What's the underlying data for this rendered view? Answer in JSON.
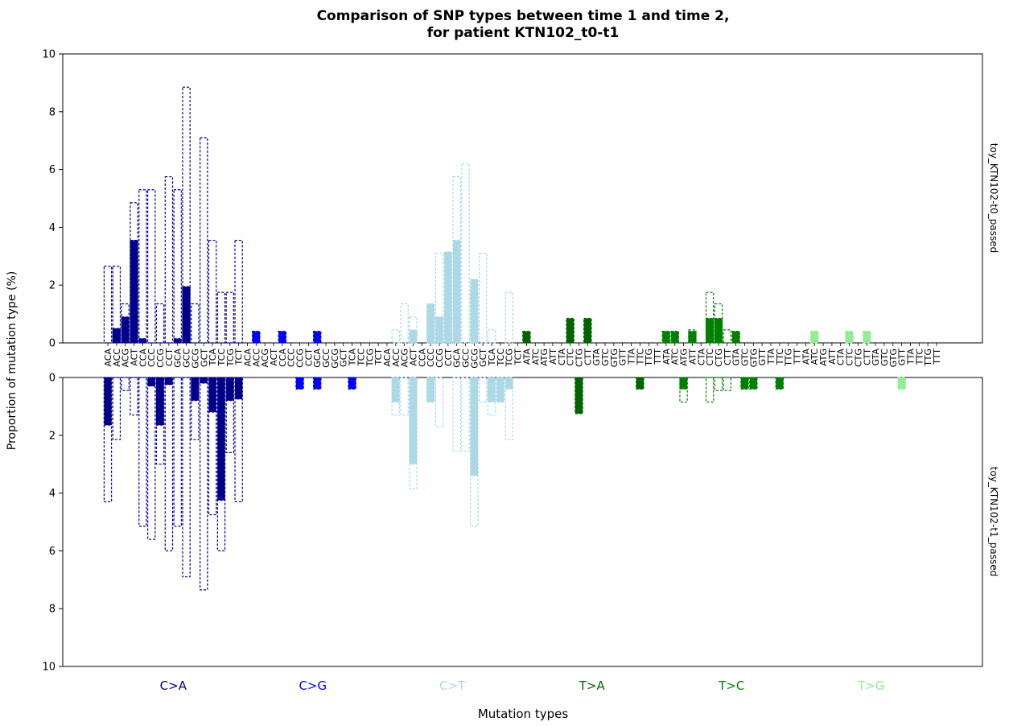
{
  "chart_data": {
    "type": "bar",
    "title_line1": "Comparison of SNP types between time 1 and time 2,",
    "title_line2": "for patient KTN102_t0-t1",
    "xlabel": "Mutation types",
    "ylabel": "Proportion of mutation type (%)",
    "ylim": [
      0,
      10
    ],
    "yticks": [
      "0",
      "2",
      "4",
      "6",
      "8",
      "10"
    ],
    "panel_labels": [
      "toy_KTN102-t0_passed",
      "toy_KTN102-t1_passed"
    ],
    "groups": [
      {
        "name": "C>A",
        "color": "#00008B",
        "contexts": [
          "ACA",
          "ACC",
          "ACG",
          "ACT",
          "CCA",
          "CCC",
          "CCG",
          "CCT",
          "GCA",
          "GCC",
          "GCG",
          "GCT",
          "TCA",
          "TCC",
          "TCG",
          "TCT"
        ]
      },
      {
        "name": "C>G",
        "color": "#0000FF",
        "contexts": [
          "ACA",
          "ACC",
          "ACG",
          "ACT",
          "CCA",
          "CCC",
          "CCG",
          "CCT",
          "GCA",
          "GCC",
          "GCG",
          "GCT",
          "TCA",
          "TCC",
          "TCG",
          "TCT"
        ]
      },
      {
        "name": "C>T",
        "color": "#ADD8E6",
        "contexts": [
          "ACA",
          "ACC",
          "ACG",
          "ACT",
          "CCA",
          "CCC",
          "CCG",
          "CCT",
          "GCA",
          "GCC",
          "GCG",
          "GCT",
          "TCA",
          "TCC",
          "TCG",
          "TCT"
        ]
      },
      {
        "name": "T>A",
        "color": "#006400",
        "contexts": [
          "ATA",
          "ATC",
          "ATG",
          "ATT",
          "CTA",
          "CTC",
          "CTG",
          "CTT",
          "GTA",
          "GTC",
          "GTG",
          "GTT",
          "TTA",
          "TTC",
          "TTG",
          "TTT"
        ]
      },
      {
        "name": "T>C",
        "color": "#008000",
        "contexts": [
          "ATA",
          "ATC",
          "ATG",
          "ATT",
          "CTA",
          "CTC",
          "CTG",
          "CTT",
          "GTA",
          "GTC",
          "GTG",
          "GTT",
          "TTA",
          "TTC",
          "TTG",
          "TTT"
        ]
      },
      {
        "name": "T>G",
        "color": "#90EE90",
        "contexts": [
          "ATA",
          "ATC",
          "ATG",
          "ATT",
          "CTA",
          "CTC",
          "CTG",
          "CTT",
          "GTA",
          "GTC",
          "GTG",
          "GTT",
          "TTA",
          "TTC",
          "TTG",
          "TTT"
        ]
      }
    ],
    "series": [
      {
        "name": "toy_KTN102-t0_passed",
        "values": [
          0,
          0.5,
          0.9,
          3.55,
          0.15,
          0,
          0,
          0,
          0.15,
          1.95,
          0,
          0,
          0,
          0,
          0,
          0,
          0,
          0.4,
          0,
          0,
          0.4,
          0,
          0,
          0,
          0.4,
          0,
          0,
          0,
          0,
          0,
          0,
          0,
          0,
          0,
          0,
          0.45,
          0,
          1.35,
          0.9,
          3.15,
          3.55,
          0,
          2.2,
          0,
          0,
          0,
          0,
          0,
          0.4,
          0,
          0,
          0,
          0,
          0.85,
          0,
          0.85,
          0,
          0,
          0,
          0,
          0,
          0,
          0,
          0,
          0.4,
          0.4,
          0,
          0.4,
          0,
          0.85,
          0.85,
          0,
          0.4,
          0,
          0,
          0,
          0,
          0,
          0,
          0,
          0,
          0.4,
          0,
          0,
          0,
          0.4,
          0,
          0.4,
          0,
          0,
          0,
          0,
          0,
          0,
          0,
          0
        ],
        "ci_high": [
          2.65,
          2.65,
          1.35,
          4.85,
          5.3,
          5.3,
          1.35,
          5.75,
          5.3,
          8.85,
          1.35,
          7.1,
          3.55,
          1.75,
          1.75,
          3.55,
          0,
          0.4,
          0,
          0,
          0.4,
          0,
          0,
          0,
          0.4,
          0,
          0,
          0,
          0,
          0,
          0,
          0,
          0,
          0.45,
          1.35,
          0.9,
          0,
          0.9,
          3.1,
          0.9,
          5.75,
          6.2,
          1.75,
          3.1,
          0.45,
          0,
          1.75,
          0,
          0.4,
          0,
          0,
          0,
          0,
          0.85,
          0,
          0.85,
          0,
          0,
          0,
          0,
          0,
          0,
          0,
          0,
          0.4,
          0.4,
          0,
          0.45,
          0,
          1.75,
          1.35,
          0.45,
          0.4,
          0,
          0,
          0,
          0,
          0,
          0,
          0,
          0,
          0.4,
          0,
          0,
          0,
          0.4,
          0,
          0.4,
          0,
          0,
          0,
          0,
          0,
          0,
          0,
          0
        ]
      },
      {
        "name": "toy_KTN102-t1_passed",
        "values": [
          1.65,
          0,
          0,
          0,
          0,
          0.3,
          1.65,
          0.25,
          0,
          0,
          0.8,
          0.2,
          1.2,
          4.25,
          0.8,
          0.75,
          0,
          0,
          0,
          0,
          0,
          0,
          0.4,
          0,
          0.4,
          0,
          0,
          0,
          0.4,
          0,
          0,
          0,
          0,
          0.85,
          0,
          3,
          0,
          0.85,
          0,
          0,
          0,
          0,
          3.4,
          0,
          0.85,
          0.85,
          0.4,
          0,
          0,
          0,
          0,
          0,
          0,
          0,
          1.25,
          0,
          0,
          0,
          0,
          0,
          0,
          0.4,
          0,
          0,
          0,
          0,
          0.4,
          0,
          0,
          0,
          0,
          0,
          0,
          0.4,
          0.4,
          0,
          0,
          0.4,
          0,
          0,
          0,
          0,
          0,
          0,
          0,
          0,
          0,
          0,
          0,
          0,
          0,
          0.4,
          0,
          0,
          0,
          0
        ],
        "ci_high": [
          4.3,
          2.15,
          0.45,
          1.3,
          5.15,
          5.6,
          3,
          6,
          5.15,
          6.9,
          2.15,
          7.35,
          4.75,
          6,
          2.6,
          4.3,
          0,
          0,
          0,
          0,
          0,
          0,
          0.4,
          0,
          0.4,
          0,
          0,
          0,
          0.4,
          0,
          0,
          0,
          0,
          1.3,
          1.3,
          3.85,
          0,
          0.85,
          1.7,
          0,
          2.55,
          2.55,
          5.15,
          0.85,
          1.3,
          0.85,
          2.15,
          0,
          0,
          0,
          0,
          0,
          0,
          0,
          1.25,
          0,
          0,
          0,
          0,
          0,
          0,
          0.4,
          0,
          0,
          0,
          0,
          0.85,
          0,
          0,
          0.85,
          0.45,
          0.45,
          0,
          0.4,
          0.4,
          0,
          0,
          0.4,
          0,
          0,
          0,
          0,
          0,
          0,
          0,
          0,
          0,
          0,
          0,
          0,
          0,
          0.4,
          0,
          0,
          0,
          0
        ]
      }
    ]
  }
}
